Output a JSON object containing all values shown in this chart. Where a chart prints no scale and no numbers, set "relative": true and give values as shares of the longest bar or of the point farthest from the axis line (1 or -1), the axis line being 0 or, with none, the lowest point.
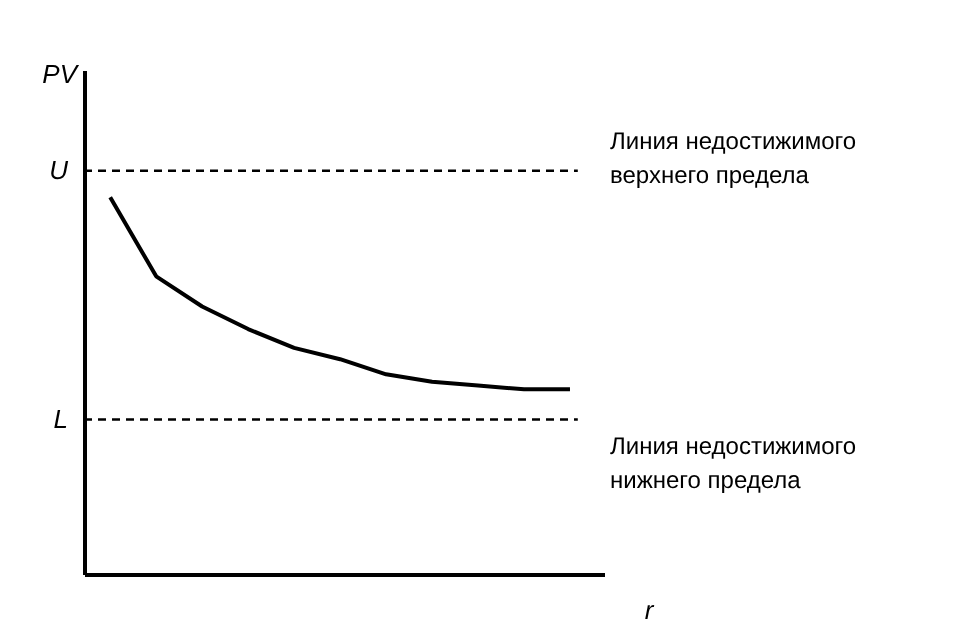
{
  "chart_data": {
    "type": "line",
    "relative": true,
    "xlabel": "r",
    "ylabel": "PV",
    "categories": [
      null,
      null,
      null,
      null,
      null,
      null,
      null,
      null,
      null,
      null,
      null
    ],
    "series": [
      {
        "color": "#000000",
        "values": [
          1,
          0.79,
          0.71,
          0.65,
          0.6,
          0.57,
          0.53,
          0.51,
          0.5,
          0.49,
          0.49
        ]
      }
    ],
    "ref_lines": [
      {
        "axis": "y",
        "value": 1.07,
        "label": "U",
        "line_style": "dashed",
        "color": "#000000"
      },
      {
        "axis": "y",
        "value": 0.41,
        "label": "L",
        "line_style": "dashed",
        "color": "#000000"
      }
    ],
    "annotations": [
      "Линия недостижимого\nверхнего предела",
      "Линия недостижимого\nнижнего предела"
    ],
    "line_style": "solid",
    "marker": "none"
  }
}
